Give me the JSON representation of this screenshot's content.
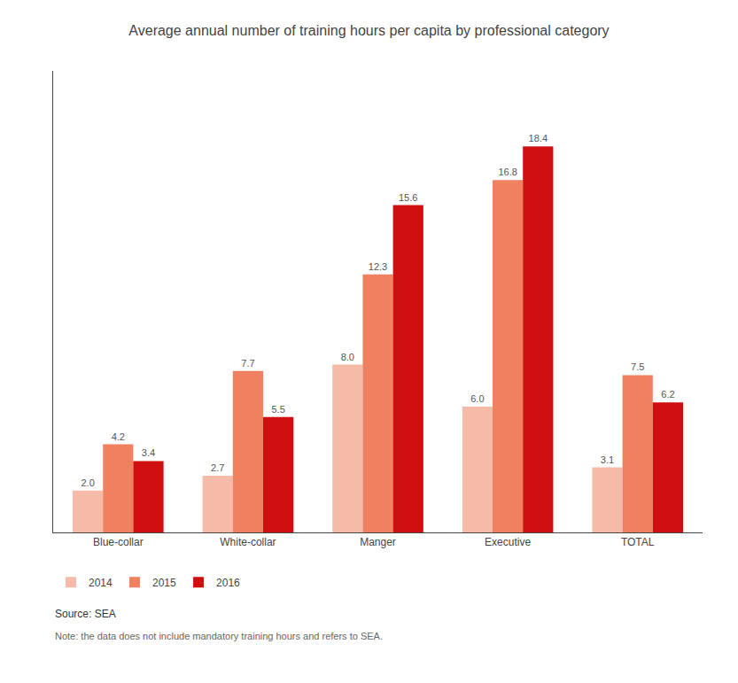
{
  "chart_data": {
    "type": "bar",
    "title": "Average annual number of training hours per capita by professional category",
    "categories": [
      "Blue-collar",
      "White-collar",
      "Manger",
      "Executive",
      "TOTAL"
    ],
    "series": [
      {
        "name": "2014",
        "color": "#F5BBA8",
        "values": [
          2.0,
          2.7,
          8.0,
          6.0,
          3.1
        ],
        "value_labels": [
          "2.0",
          "2.7",
          "8.0",
          "6.0",
          "3.1"
        ]
      },
      {
        "name": "2015",
        "color": "#EF8060",
        "values": [
          4.2,
          7.7,
          12.3,
          16.8,
          7.5
        ],
        "value_labels": [
          "4.2",
          "7.7",
          "12.3",
          "16.8",
          "7.5"
        ]
      },
      {
        "name": "2016",
        "color": "#D01010",
        "values": [
          3.4,
          5.5,
          15.6,
          18.4,
          6.2
        ],
        "value_labels": [
          "3.4",
          "5.5",
          "15.6",
          "18.4",
          "6.2"
        ]
      }
    ],
    "ylim": [
      0,
      22
    ],
    "data_labels": true,
    "tick_labels": "x",
    "grid": false,
    "legend": "bottom left",
    "annotations": [
      "Source: SEA",
      "Note: the data does not include mandatory training hours and refers to SEA."
    ]
  }
}
